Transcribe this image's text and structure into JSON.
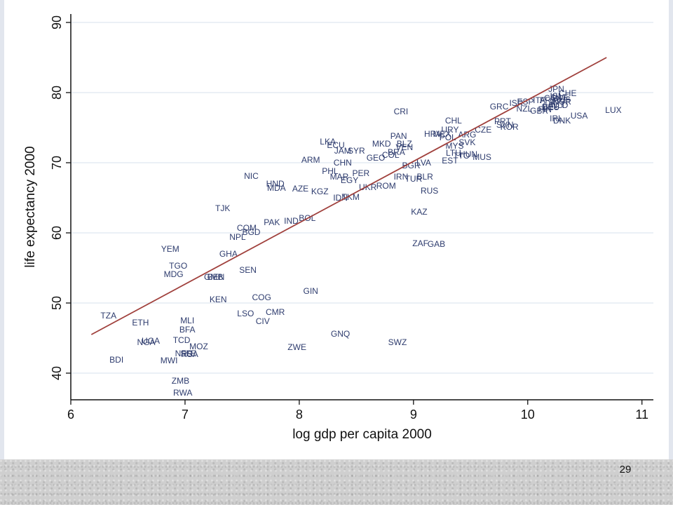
{
  "page_number": "29",
  "colors": {
    "slide_background": "#e2e6ee",
    "plot_background": "#ffffff",
    "grid": "#dfe7f0",
    "point_labels": "#2e3c6e",
    "fit_line": "#a0403c",
    "axis": "#111111"
  },
  "chart_data": {
    "type": "scatter",
    "title": "",
    "xlabel": "log gdp per capita 2000",
    "ylabel": "life expectancy 2000",
    "xlim": [
      6,
      11.1
    ],
    "ylim": [
      36.2,
      91.2
    ],
    "xticks": [
      6,
      7,
      8,
      9,
      10,
      11
    ],
    "yticks": [
      40,
      50,
      60,
      70,
      80,
      90
    ],
    "x_tick_labels": [
      "6",
      "7",
      "8",
      "9",
      "10",
      "11"
    ],
    "y_tick_labels": [
      "40",
      "50",
      "60",
      "70",
      "80",
      "90"
    ],
    "grid": "horizontal",
    "legend": "none",
    "markers": "country code labels",
    "fit_line": {
      "x": [
        6.18,
        10.69
      ],
      "y": [
        45.5,
        85.0
      ]
    },
    "points": [
      {
        "label": "LUX",
        "x": 10.75,
        "y": 77.4
      },
      {
        "label": "USA",
        "x": 10.45,
        "y": 76.6
      },
      {
        "label": "JPN",
        "x": 10.25,
        "y": 80.4
      },
      {
        "label": "CHE",
        "x": 10.35,
        "y": 79.8
      },
      {
        "label": "ISL",
        "x": 10.25,
        "y": 79.4
      },
      {
        "label": "CAN",
        "x": 10.22,
        "y": 79.1
      },
      {
        "label": "SWE",
        "x": 10.28,
        "y": 79.2
      },
      {
        "label": "NOR",
        "x": 10.3,
        "y": 78.6
      },
      {
        "label": "AUS",
        "x": 10.3,
        "y": 78.9
      },
      {
        "label": "FRA",
        "x": 10.18,
        "y": 78.8
      },
      {
        "label": "ITA",
        "x": 10.1,
        "y": 78.8
      },
      {
        "label": "ESP",
        "x": 9.98,
        "y": 78.6
      },
      {
        "label": "ISR",
        "x": 9.9,
        "y": 78.4
      },
      {
        "label": "GRC",
        "x": 9.75,
        "y": 77.9
      },
      {
        "label": "NZL",
        "x": 9.97,
        "y": 77.6
      },
      {
        "label": "GBR",
        "x": 10.1,
        "y": 77.3
      },
      {
        "label": "DEU",
        "x": 10.2,
        "y": 77.8
      },
      {
        "label": "AUT",
        "x": 10.25,
        "y": 78.2
      },
      {
        "label": "BEL",
        "x": 10.2,
        "y": 77.9
      },
      {
        "label": "NLD",
        "x": 10.28,
        "y": 78.1
      },
      {
        "label": "FIN",
        "x": 10.15,
        "y": 77.5
      },
      {
        "label": "DNK",
        "x": 10.3,
        "y": 75.9
      },
      {
        "label": "IRL",
        "x": 10.25,
        "y": 76.2
      },
      {
        "label": "PRT",
        "x": 9.78,
        "y": 75.8
      },
      {
        "label": "SVN",
        "x": 9.8,
        "y": 75.3
      },
      {
        "label": "KOR",
        "x": 9.84,
        "y": 75.0
      },
      {
        "label": "CZE",
        "x": 9.61,
        "y": 74.6
      },
      {
        "label": "MUS",
        "x": 9.6,
        "y": 70.7
      },
      {
        "label": "CHL",
        "x": 9.35,
        "y": 75.9
      },
      {
        "label": "ARG",
        "x": 9.47,
        "y": 73.9
      },
      {
        "label": "URY",
        "x": 9.32,
        "y": 74.6
      },
      {
        "label": "HRV",
        "x": 9.17,
        "y": 74.0
      },
      {
        "label": "MEX",
        "x": 9.25,
        "y": 74.0
      },
      {
        "label": "POL",
        "x": 9.3,
        "y": 73.5
      },
      {
        "label": "SVK",
        "x": 9.47,
        "y": 72.8
      },
      {
        "label": "HUN",
        "x": 9.48,
        "y": 71.1
      },
      {
        "label": "MYS",
        "x": 9.36,
        "y": 72.3
      },
      {
        "label": "LTU",
        "x": 9.35,
        "y": 71.3
      },
      {
        "label": "TTO",
        "x": 9.42,
        "y": 70.9
      },
      {
        "label": "EST",
        "x": 9.32,
        "y": 70.2
      },
      {
        "label": "CRI",
        "x": 8.89,
        "y": 77.2
      },
      {
        "label": "PAN",
        "x": 8.87,
        "y": 73.7
      },
      {
        "label": "MKD",
        "x": 8.72,
        "y": 72.6
      },
      {
        "label": "BLZ",
        "x": 8.92,
        "y": 72.6
      },
      {
        "label": "VEN",
        "x": 8.92,
        "y": 72.1
      },
      {
        "label": "BRA",
        "x": 8.85,
        "y": 71.4
      },
      {
        "label": "COL",
        "x": 8.8,
        "y": 71.0
      },
      {
        "label": "LVA",
        "x": 9.09,
        "y": 69.9
      },
      {
        "label": "BGR",
        "x": 8.98,
        "y": 69.5
      },
      {
        "label": "ROM",
        "x": 8.76,
        "y": 66.6
      },
      {
        "label": "IRN",
        "x": 8.89,
        "y": 67.9
      },
      {
        "label": "TUR",
        "x": 9.0,
        "y": 67.6
      },
      {
        "label": "BLR",
        "x": 9.1,
        "y": 67.9
      },
      {
        "label": "RUS",
        "x": 9.14,
        "y": 65.9
      },
      {
        "label": "KAZ",
        "x": 9.05,
        "y": 62.9
      },
      {
        "label": "ZAF",
        "x": 9.06,
        "y": 58.4
      },
      {
        "label": "GAB",
        "x": 9.2,
        "y": 58.3
      },
      {
        "label": "SWZ",
        "x": 8.86,
        "y": 44.3
      },
      {
        "label": "JAM",
        "x": 8.38,
        "y": 71.6
      },
      {
        "label": "SYR",
        "x": 8.5,
        "y": 71.6
      },
      {
        "label": "ECU",
        "x": 8.32,
        "y": 72.4
      },
      {
        "label": "LKA",
        "x": 8.25,
        "y": 72.9
      },
      {
        "label": "GEO",
        "x": 8.67,
        "y": 70.6
      },
      {
        "label": "CHN",
        "x": 8.38,
        "y": 69.9
      },
      {
        "label": "PER",
        "x": 8.54,
        "y": 68.4
      },
      {
        "label": "PHL",
        "x": 8.27,
        "y": 68.7
      },
      {
        "label": "MAR",
        "x": 8.35,
        "y": 67.9
      },
      {
        "label": "EGY",
        "x": 8.44,
        "y": 67.4
      },
      {
        "label": "UKR",
        "x": 8.6,
        "y": 66.4
      },
      {
        "label": "ARM",
        "x": 8.1,
        "y": 70.3
      },
      {
        "label": "AZE",
        "x": 8.01,
        "y": 66.2
      },
      {
        "label": "KGZ",
        "x": 8.18,
        "y": 65.8
      },
      {
        "label": "IDN",
        "x": 8.36,
        "y": 64.9
      },
      {
        "label": "TKM",
        "x": 8.45,
        "y": 65.0
      },
      {
        "label": "BOL",
        "x": 8.07,
        "y": 62.0
      },
      {
        "label": "IND",
        "x": 7.93,
        "y": 61.6
      },
      {
        "label": "NIC",
        "x": 7.58,
        "y": 68.0
      },
      {
        "label": "HND",
        "x": 7.79,
        "y": 66.9
      },
      {
        "label": "MDA",
        "x": 7.8,
        "y": 66.3
      },
      {
        "label": "TJK",
        "x": 7.33,
        "y": 63.4
      },
      {
        "label": "PAK",
        "x": 7.76,
        "y": 61.4
      },
      {
        "label": "COM",
        "x": 7.54,
        "y": 60.6
      },
      {
        "label": "BGD",
        "x": 7.58,
        "y": 60.0
      },
      {
        "label": "NPL",
        "x": 7.46,
        "y": 59.3
      },
      {
        "label": "YEM",
        "x": 6.87,
        "y": 57.6
      },
      {
        "label": "GHA",
        "x": 7.38,
        "y": 56.9
      },
      {
        "label": "TGO",
        "x": 6.94,
        "y": 55.2
      },
      {
        "label": "MDG",
        "x": 6.9,
        "y": 54.0
      },
      {
        "label": "SEN",
        "x": 7.55,
        "y": 54.6
      },
      {
        "label": "BEN",
        "x": 7.27,
        "y": 53.6
      },
      {
        "label": "GMB",
        "x": 7.25,
        "y": 53.6
      },
      {
        "label": "GIN",
        "x": 8.1,
        "y": 51.6
      },
      {
        "label": "KEN",
        "x": 7.29,
        "y": 50.4
      },
      {
        "label": "COG",
        "x": 7.67,
        "y": 50.7
      },
      {
        "label": "LSO",
        "x": 7.53,
        "y": 48.4
      },
      {
        "label": "CMR",
        "x": 7.79,
        "y": 48.6
      },
      {
        "label": "CIV",
        "x": 7.68,
        "y": 47.3
      },
      {
        "label": "TZA",
        "x": 6.33,
        "y": 48.1
      },
      {
        "label": "ETH",
        "x": 6.61,
        "y": 47.1
      },
      {
        "label": "MLI",
        "x": 7.02,
        "y": 47.4
      },
      {
        "label": "BFA",
        "x": 7.02,
        "y": 46.1
      },
      {
        "label": "TCD",
        "x": 6.97,
        "y": 44.6
      },
      {
        "label": "UGA",
        "x": 6.7,
        "y": 44.5
      },
      {
        "label": "NGA",
        "x": 6.66,
        "y": 44.3
      },
      {
        "label": "MOZ",
        "x": 7.12,
        "y": 43.7
      },
      {
        "label": "NER",
        "x": 6.99,
        "y": 42.7
      },
      {
        "label": "SLE",
        "x": 7.03,
        "y": 42.7
      },
      {
        "label": "RSA",
        "x": 7.04,
        "y": 42.6
      },
      {
        "label": "MWI",
        "x": 6.86,
        "y": 41.7
      },
      {
        "label": "BDI",
        "x": 6.4,
        "y": 41.8
      },
      {
        "label": "ZWE",
        "x": 7.98,
        "y": 43.6
      },
      {
        "label": "GNQ",
        "x": 8.36,
        "y": 45.5
      },
      {
        "label": "ZMB",
        "x": 6.96,
        "y": 38.8
      },
      {
        "label": "RWA",
        "x": 6.98,
        "y": 37.1
      }
    ]
  }
}
